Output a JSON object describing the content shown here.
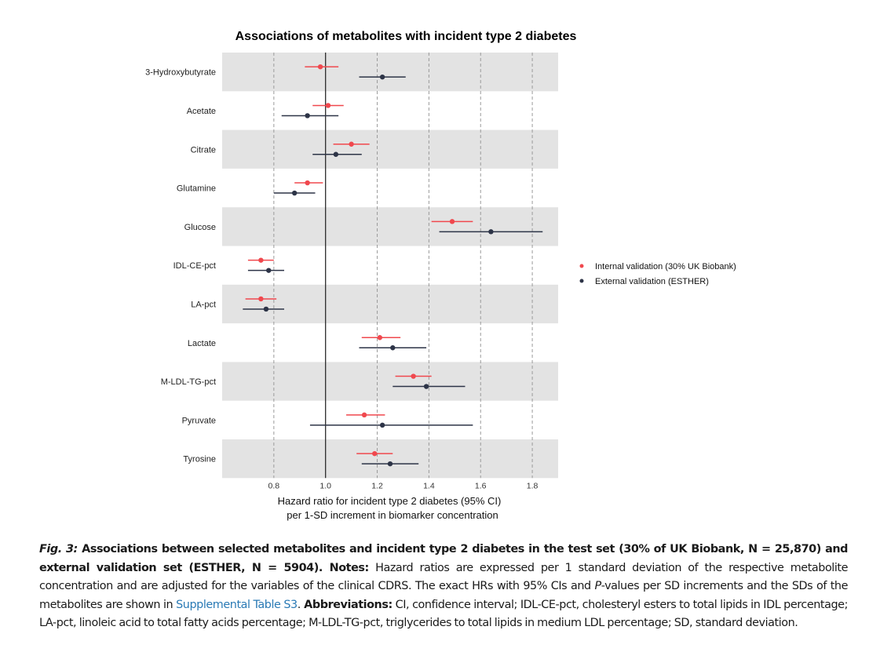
{
  "chart_data": {
    "type": "forest",
    "title": "Associations of metabolites with incident type 2 diabetes",
    "xlabel_lines": [
      "Hazard ratio for incident type 2 diabetes (95% CI)",
      "per 1-SD increment in biomarker concentration"
    ],
    "xlim": [
      0.6,
      1.9
    ],
    "xticks": [
      0.8,
      1.0,
      1.2,
      1.4,
      1.6,
      1.8
    ],
    "xtick_labels": [
      "0.8",
      "1.0",
      "1.2",
      "1.4",
      "1.6",
      "1.8"
    ],
    "reference_line": 1.0,
    "grid": "vertical dashed at ticks",
    "legend_position": "right",
    "categories": [
      "3-Hydroxybutyrate",
      "Acetate",
      "Citrate",
      "Glutamine",
      "Glucose",
      "IDL-CE-pct",
      "LA-pct",
      "Lactate",
      "M-LDL-TG-pct",
      "Pyruvate",
      "Tyrosine"
    ],
    "series": [
      {
        "name": "Internal validation (30% UK Biobank)",
        "color": "#f0484e",
        "hr": [
          0.98,
          1.01,
          1.1,
          0.93,
          1.49,
          0.75,
          0.75,
          1.21,
          1.34,
          1.15,
          1.19
        ],
        "lower": [
          0.92,
          0.95,
          1.03,
          0.88,
          1.41,
          0.7,
          0.69,
          1.14,
          1.27,
          1.08,
          1.12
        ],
        "upper": [
          1.05,
          1.07,
          1.17,
          0.99,
          1.57,
          0.8,
          0.81,
          1.29,
          1.41,
          1.23,
          1.26
        ]
      },
      {
        "name": "External validation (ESTHER)",
        "color": "#2d3447",
        "hr": [
          1.22,
          0.93,
          1.04,
          0.88,
          1.64,
          0.78,
          0.77,
          1.26,
          1.39,
          1.22,
          1.25
        ],
        "lower": [
          1.13,
          0.83,
          0.95,
          0.8,
          1.44,
          0.7,
          0.68,
          1.13,
          1.26,
          0.94,
          1.14
        ],
        "upper": [
          1.31,
          1.05,
          1.14,
          0.96,
          1.84,
          0.84,
          0.84,
          1.39,
          1.54,
          1.57,
          1.36
        ]
      }
    ]
  },
  "caption": {
    "fig_label": "Fig. 3:",
    "title": " Associations between selected metabolites and incident type 2 diabetes in the test set (30% of UK Biobank, N = 25,870) and external validation set (ESTHER, N = 5904).",
    "notes_label": " Notes:",
    "notes_text_1": " Hazard ratios are expressed per 1 standard deviation of the respective metabolite concentration and are adjusted for the variables of the clinical CDRS. The exact HRs with 95% CIs and ",
    "notes_italic": "P",
    "notes_text_2": "-values per SD increments and the SDs of the metabolites are shown in ",
    "link_text": "Supplemental Table S3",
    "notes_text_3": ".",
    "abbr_label": " Abbreviations:",
    "abbr_text": " CI, confidence interval; IDL-CE-pct, cholesteryl esters to total lipids in IDL percentage; LA-pct, linoleic acid to total fatty acids percentage; M-LDL-TG-pct, triglycerides to total lipids in medium LDL percentage; SD, standard deviation."
  }
}
